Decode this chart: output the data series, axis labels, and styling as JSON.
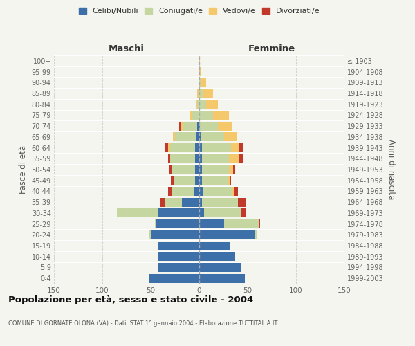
{
  "age_groups": [
    "0-4",
    "5-9",
    "10-14",
    "15-19",
    "20-24",
    "25-29",
    "30-34",
    "35-39",
    "40-44",
    "45-49",
    "50-54",
    "55-59",
    "60-64",
    "65-69",
    "70-74",
    "75-79",
    "80-84",
    "85-89",
    "90-94",
    "95-99",
    "100+"
  ],
  "birth_years": [
    "1999-2003",
    "1994-1998",
    "1989-1993",
    "1984-1988",
    "1979-1983",
    "1974-1978",
    "1969-1973",
    "1964-1968",
    "1959-1963",
    "1954-1958",
    "1949-1953",
    "1944-1948",
    "1939-1943",
    "1934-1938",
    "1929-1933",
    "1924-1928",
    "1919-1923",
    "1914-1918",
    "1909-1913",
    "1904-1908",
    "≤ 1903"
  ],
  "colors": {
    "celibi": "#3d6fa8",
    "coniugati": "#c5d6a0",
    "vedovi": "#f5c96b",
    "divorziati": "#c0392b"
  },
  "maschi": {
    "celibi": [
      52,
      43,
      43,
      42,
      50,
      44,
      42,
      18,
      6,
      4,
      4,
      4,
      4,
      3,
      2,
      0,
      0,
      0,
      0,
      0,
      0
    ],
    "coniugati": [
      0,
      0,
      0,
      0,
      2,
      2,
      43,
      17,
      22,
      22,
      24,
      26,
      26,
      22,
      15,
      8,
      2,
      1,
      0,
      0,
      0
    ],
    "vedovi": [
      0,
      0,
      0,
      0,
      0,
      0,
      0,
      0,
      0,
      0,
      0,
      0,
      2,
      2,
      2,
      2,
      1,
      1,
      1,
      0,
      0
    ],
    "divorziati": [
      0,
      0,
      0,
      0,
      0,
      0,
      0,
      5,
      4,
      3,
      3,
      2,
      3,
      0,
      2,
      0,
      0,
      0,
      0,
      0,
      0
    ]
  },
  "femmine": {
    "celibi": [
      47,
      43,
      37,
      32,
      57,
      26,
      5,
      3,
      4,
      3,
      3,
      3,
      3,
      2,
      1,
      0,
      0,
      0,
      0,
      0,
      0
    ],
    "coniugati": [
      0,
      0,
      0,
      0,
      3,
      36,
      38,
      37,
      30,
      26,
      28,
      28,
      30,
      24,
      18,
      14,
      7,
      4,
      2,
      0,
      0
    ],
    "vedovi": [
      0,
      0,
      0,
      0,
      0,
      0,
      0,
      0,
      2,
      3,
      4,
      10,
      8,
      13,
      15,
      17,
      12,
      10,
      5,
      2,
      1
    ],
    "divorziati": [
      0,
      0,
      0,
      0,
      0,
      1,
      5,
      8,
      4,
      1,
      2,
      4,
      4,
      0,
      0,
      0,
      0,
      0,
      0,
      0,
      0
    ]
  },
  "xlim": 150,
  "title": "Popolazione per età, sesso e stato civile - 2004",
  "subtitle": "COMUNE DI GORNATE OLONA (VA) - Dati ISTAT 1° gennaio 2004 - Elaborazione TUTTITALIA.IT",
  "ylabel_left": "Fasce di età",
  "ylabel_right": "Anni di nascita",
  "xlabel_left": "Maschi",
  "xlabel_right": "Femmine",
  "bg_color": "#f5f5f0",
  "plot_bg": "#f5f5f0",
  "grid_color": "#cccccc"
}
